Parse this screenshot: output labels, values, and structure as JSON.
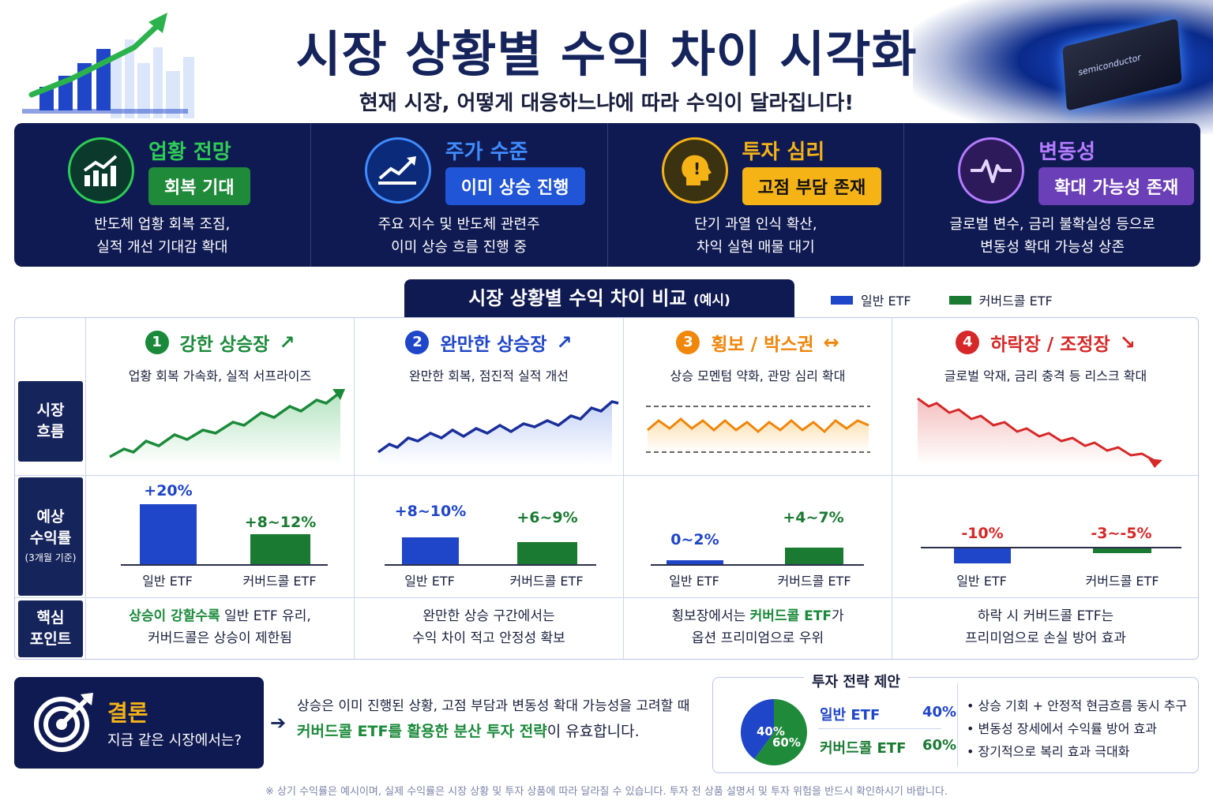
{
  "header": {
    "title": "시장 상황별 수익 차이 시각화",
    "subtitle": "현재 시장, 어떻게 대응하느냐에 따라 수익이 달라집니다!",
    "chip_text": "semiconductor"
  },
  "overview": [
    {
      "heading": "업황 전망",
      "badge": "회복 기대",
      "desc1": "반도체 업황 회복 조짐,",
      "desc2": "실적 개선 기대감 확대",
      "color": "#2ecc55",
      "badge_bg": "#1f8a3a",
      "badge_fg": "#ffffff",
      "icon": "growth-chart-icon"
    },
    {
      "heading": "주가 수준",
      "badge": "이미 상승 진행",
      "desc1": "주요 지수 및 반도체 관련주",
      "desc2": "이미 상승 흐름 진행 중",
      "color": "#3f8cff",
      "badge_bg": "#1f55d6",
      "badge_fg": "#ffffff",
      "icon": "trend-up-icon"
    },
    {
      "heading": "투자 심리",
      "badge": "고점 부담 존재",
      "desc1": "단기 과열 인식 확산,",
      "desc2": "차익 실현 매물 대기",
      "color": "#f5b316",
      "badge_bg": "#f5b316",
      "badge_fg": "#111111",
      "icon": "head-alert-icon"
    },
    {
      "heading": "변동성",
      "badge": "확대 가능성 존재",
      "desc1": "글로벌 변수, 금리 불확실성 등으로",
      "desc2": "변동성 확대 가능성 상존",
      "color": "#b57bff",
      "badge_bg": "#6b3fb8",
      "badge_fg": "#ffffff",
      "icon": "pulse-icon"
    }
  ],
  "comparison": {
    "title": "시장 상황별 수익 차이 비교",
    "title_note": "(예시)",
    "legend": [
      {
        "label": "일반 ETF",
        "color": "#1f45c8"
      },
      {
        "label": "커버드콜 ETF",
        "color": "#1a7a32"
      }
    ],
    "row_labels": {
      "flow1": "시장",
      "flow2": "흐름",
      "ret1": "예상",
      "ret2": "수익률",
      "ret_note": "(3개월 기준)",
      "pt1": "핵심",
      "pt2": "포인트"
    },
    "bar_label_general": "일반 ETF",
    "bar_label_covered": "커버드콜 ETF",
    "columns": [
      {
        "num": "1",
        "name": "강한 상승장",
        "arrow": "↗",
        "color": "#1a8a3a",
        "desc": "업황 회복 가속화, 실적 서프라이즈",
        "general_label": "+20%",
        "covered_label": "+8~12%",
        "general_value": 20,
        "covered_value": 10,
        "point_lead": "상승이 강할수록",
        "point_rest": " 일반 ETF 유리,",
        "point2": "커버드콜은 상승이 제한됨"
      },
      {
        "num": "2",
        "name": "완만한 상승장",
        "arrow": "↗",
        "color": "#1f45c8",
        "desc": "완만한 회복, 점진적 실적 개선",
        "general_label": "+8~10%",
        "covered_label": "+6~9%",
        "general_value": 9,
        "covered_value": 7.5,
        "point_lead": "",
        "point_rest": "완만한 상승 구간에서는",
        "point2": "수익 차이 적고 안정성 확보"
      },
      {
        "num": "3",
        "name": "횡보 / 박스권",
        "arrow": "↔",
        "color": "#f0860a",
        "desc": "상승 모멘텀 약화, 관망 심리 확대",
        "general_label": "0~2%",
        "covered_label": "+4~7%",
        "general_value": 1.2,
        "covered_value": 5.5,
        "point_lead": "",
        "point_rest": "횡보장에서는 ",
        "point_green": "커버드콜 ETF",
        "point_tail": "가",
        "point2": "옵션 프리미엄으로 우위"
      },
      {
        "num": "4",
        "name": "하락장 / 조정장",
        "arrow": "↘",
        "color": "#d62828",
        "desc": "글로벌 악재, 금리 충격 등 리스크 확대",
        "general_label": "-10%",
        "covered_label": "-3~-5%",
        "general_value": -10,
        "covered_value": -4,
        "point_lead": "",
        "point_rest": "하락 시 커버드콜 ETF는",
        "point2": "프리미엄으로 손실 방어 효과"
      }
    ]
  },
  "conclusion": {
    "title": "결론",
    "subtitle": "지금 같은 시장에서는?",
    "line1": "상승은 이미 진행된 상황, 고점 부담과 변동성 확대 가능성을 고려할 때",
    "line2_bold": "커버드콜 ETF를 활용한 분산 투자 전략",
    "line2_rest": "이 유효합니다."
  },
  "strategy": {
    "title": "투자 전략 제안",
    "allocations": [
      {
        "name": "일반 ETF",
        "pct": "40%",
        "value": 40,
        "color": "#1f45c8"
      },
      {
        "name": "커버드콜 ETF",
        "pct": "60%",
        "value": 60,
        "color": "#1f8a3a"
      }
    ],
    "bullets": [
      "• 상승 기회 + 안정적 현금흐름 동시 추구",
      "• 변동성 장세에서 수익률 방어 효과",
      "• 장기적으로 복리 효과 극대화"
    ]
  },
  "footnote": "※ 상기 수익률은 예시이며, 실제 수익률은 시장 상황 및 투자 상품에 따라 달라질 수 있습니다. 투자 전 상품 설명서 및 투자 위험을 반드시 확인하시기 바랍니다."
}
